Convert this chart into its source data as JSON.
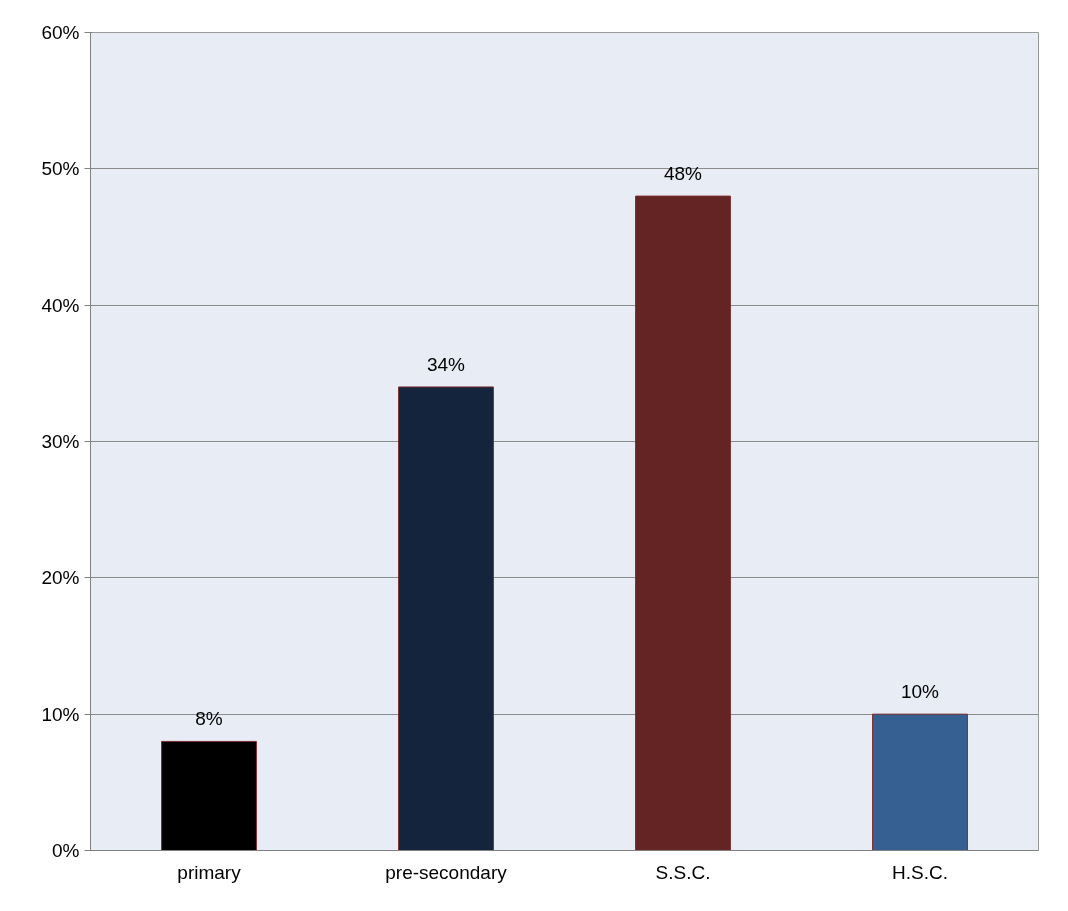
{
  "chart_data": {
    "type": "bar",
    "categories": [
      "primary",
      "pre-secondary",
      "S.S.C.",
      "H.S.C."
    ],
    "values": [
      8,
      34,
      48,
      10
    ],
    "colors": [
      "#000000",
      "#14243d",
      "#632423",
      "#366092"
    ],
    "value_labels": [
      "8%",
      "34%",
      "48%",
      "10%"
    ],
    "ylim": [
      0,
      60
    ],
    "yticks": [
      {
        "value": 0,
        "label": "0%"
      },
      {
        "value": 10,
        "label": "10%"
      },
      {
        "value": 20,
        "label": "20%"
      },
      {
        "value": 30,
        "label": "30%"
      },
      {
        "value": 40,
        "label": "40%"
      },
      {
        "value": 50,
        "label": "50%"
      },
      {
        "value": 60,
        "label": "60%"
      }
    ],
    "grid": "y"
  }
}
